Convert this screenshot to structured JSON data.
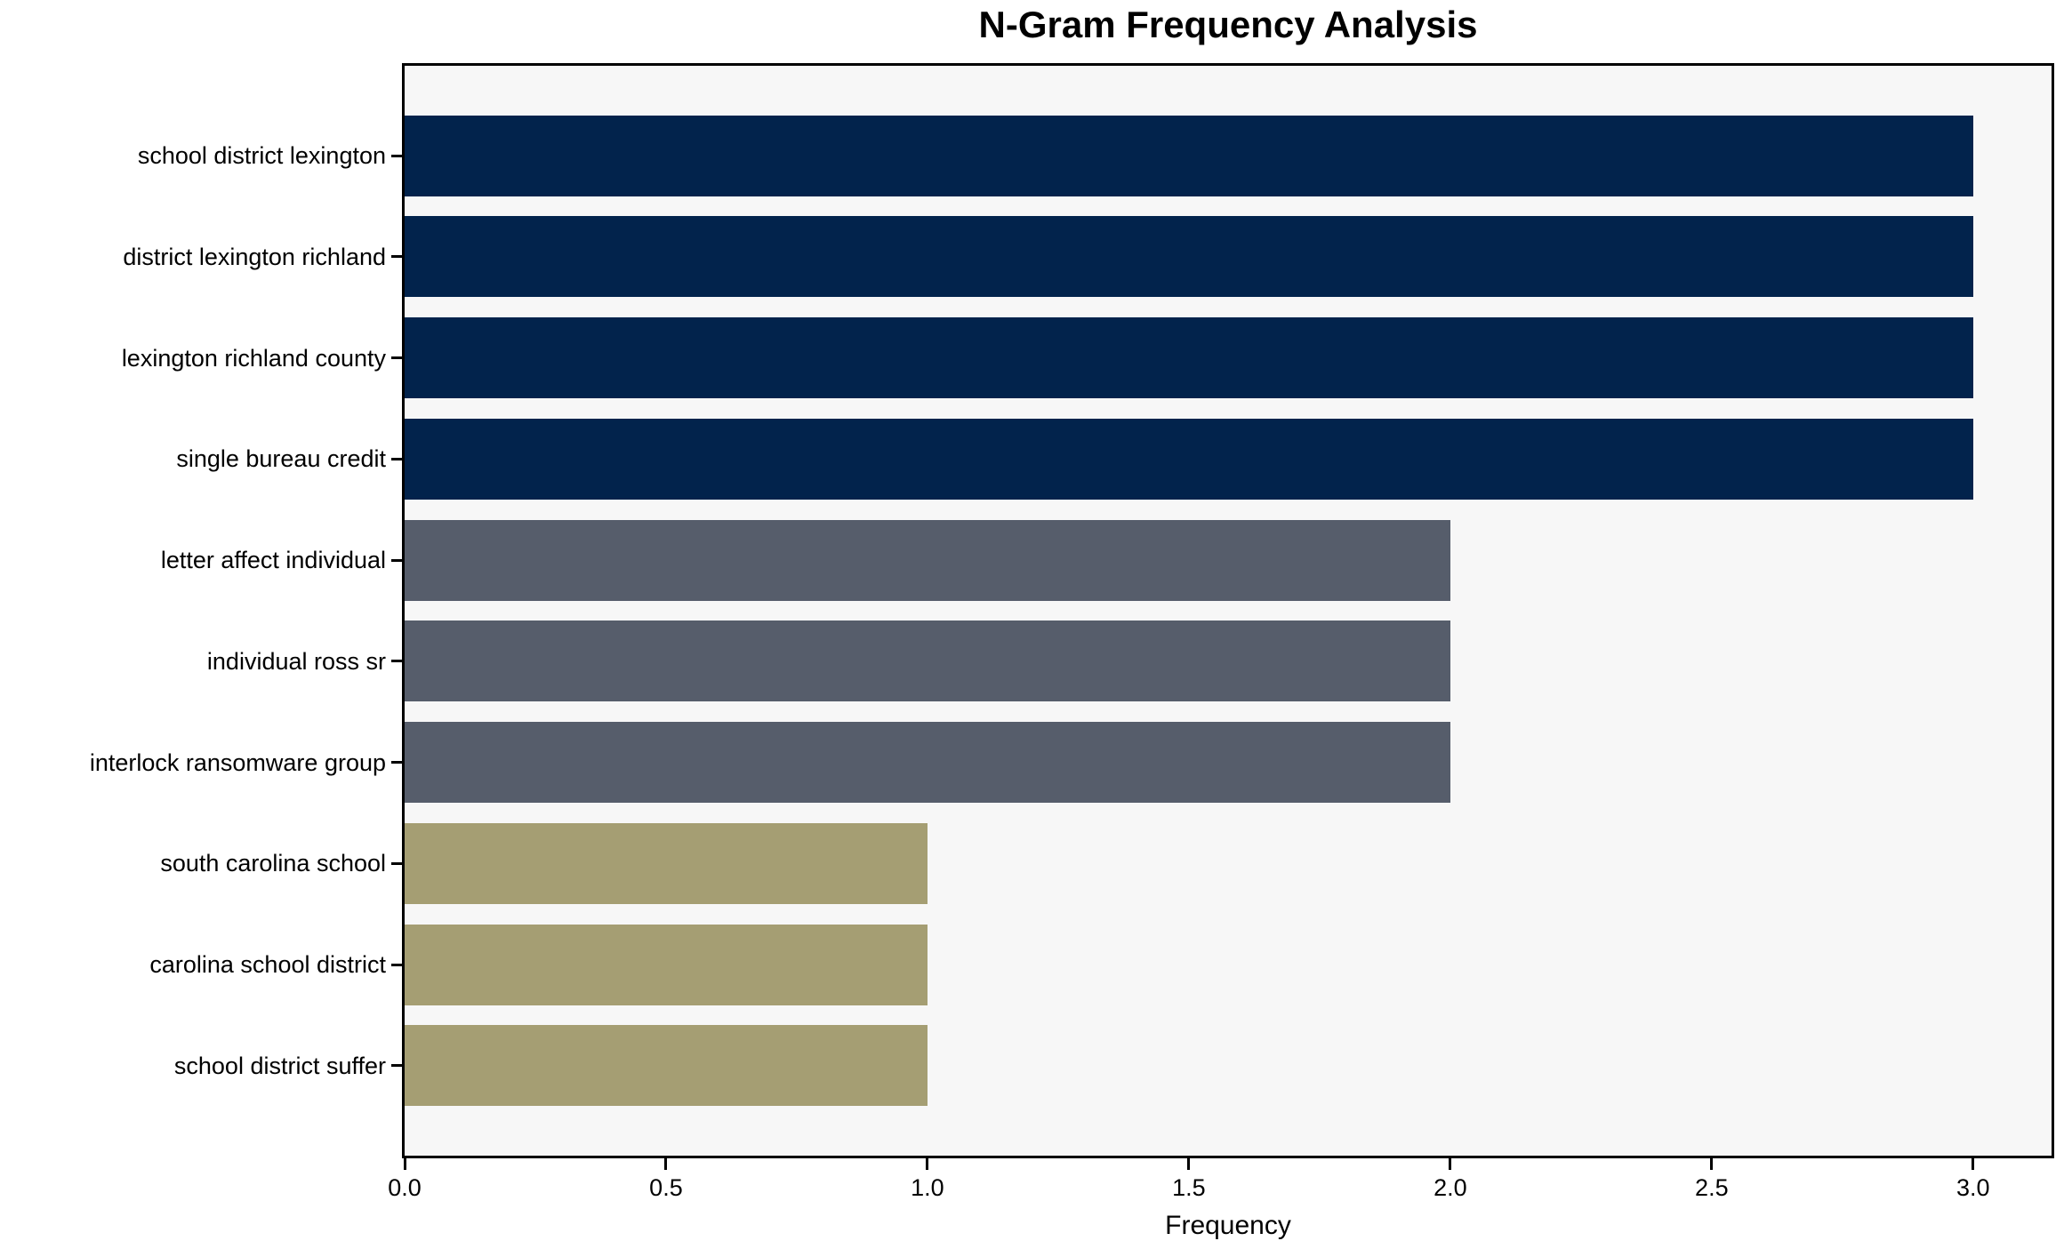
{
  "figure": {
    "background": "#FFFFFF",
    "plot_background": "#F7F7F7",
    "spine_color": "#000000",
    "text_color": "#000000"
  },
  "chart_data": {
    "type": "bar",
    "orientation": "horizontal",
    "title": "N-Gram Frequency Analysis",
    "xlabel": "Frequency",
    "ylabel": "",
    "categories": [
      "school district lexington",
      "district lexington richland",
      "lexington richland county",
      "single bureau credit",
      "letter affect individual",
      "individual ross sr",
      "interlock ransomware group",
      "south carolina school",
      "carolina school district",
      "school district suffer"
    ],
    "values": [
      3,
      3,
      3,
      3,
      2,
      2,
      2,
      1,
      1,
      1
    ],
    "bar_colors": [
      "#02234C",
      "#02234C",
      "#02234C",
      "#02234C",
      "#565D6B",
      "#565D6B",
      "#565D6B",
      "#A59E73",
      "#A59E73",
      "#A59E73"
    ],
    "color_by_value": {
      "3": "#02234C",
      "2": "#565D6B",
      "1": "#A59E73"
    },
    "xlim": [
      0,
      3.15
    ],
    "xticks": [
      "0.0",
      "0.5",
      "1.0",
      "1.5",
      "2.0",
      "2.5",
      "3.0"
    ],
    "grid": false,
    "legend_position": "none"
  }
}
